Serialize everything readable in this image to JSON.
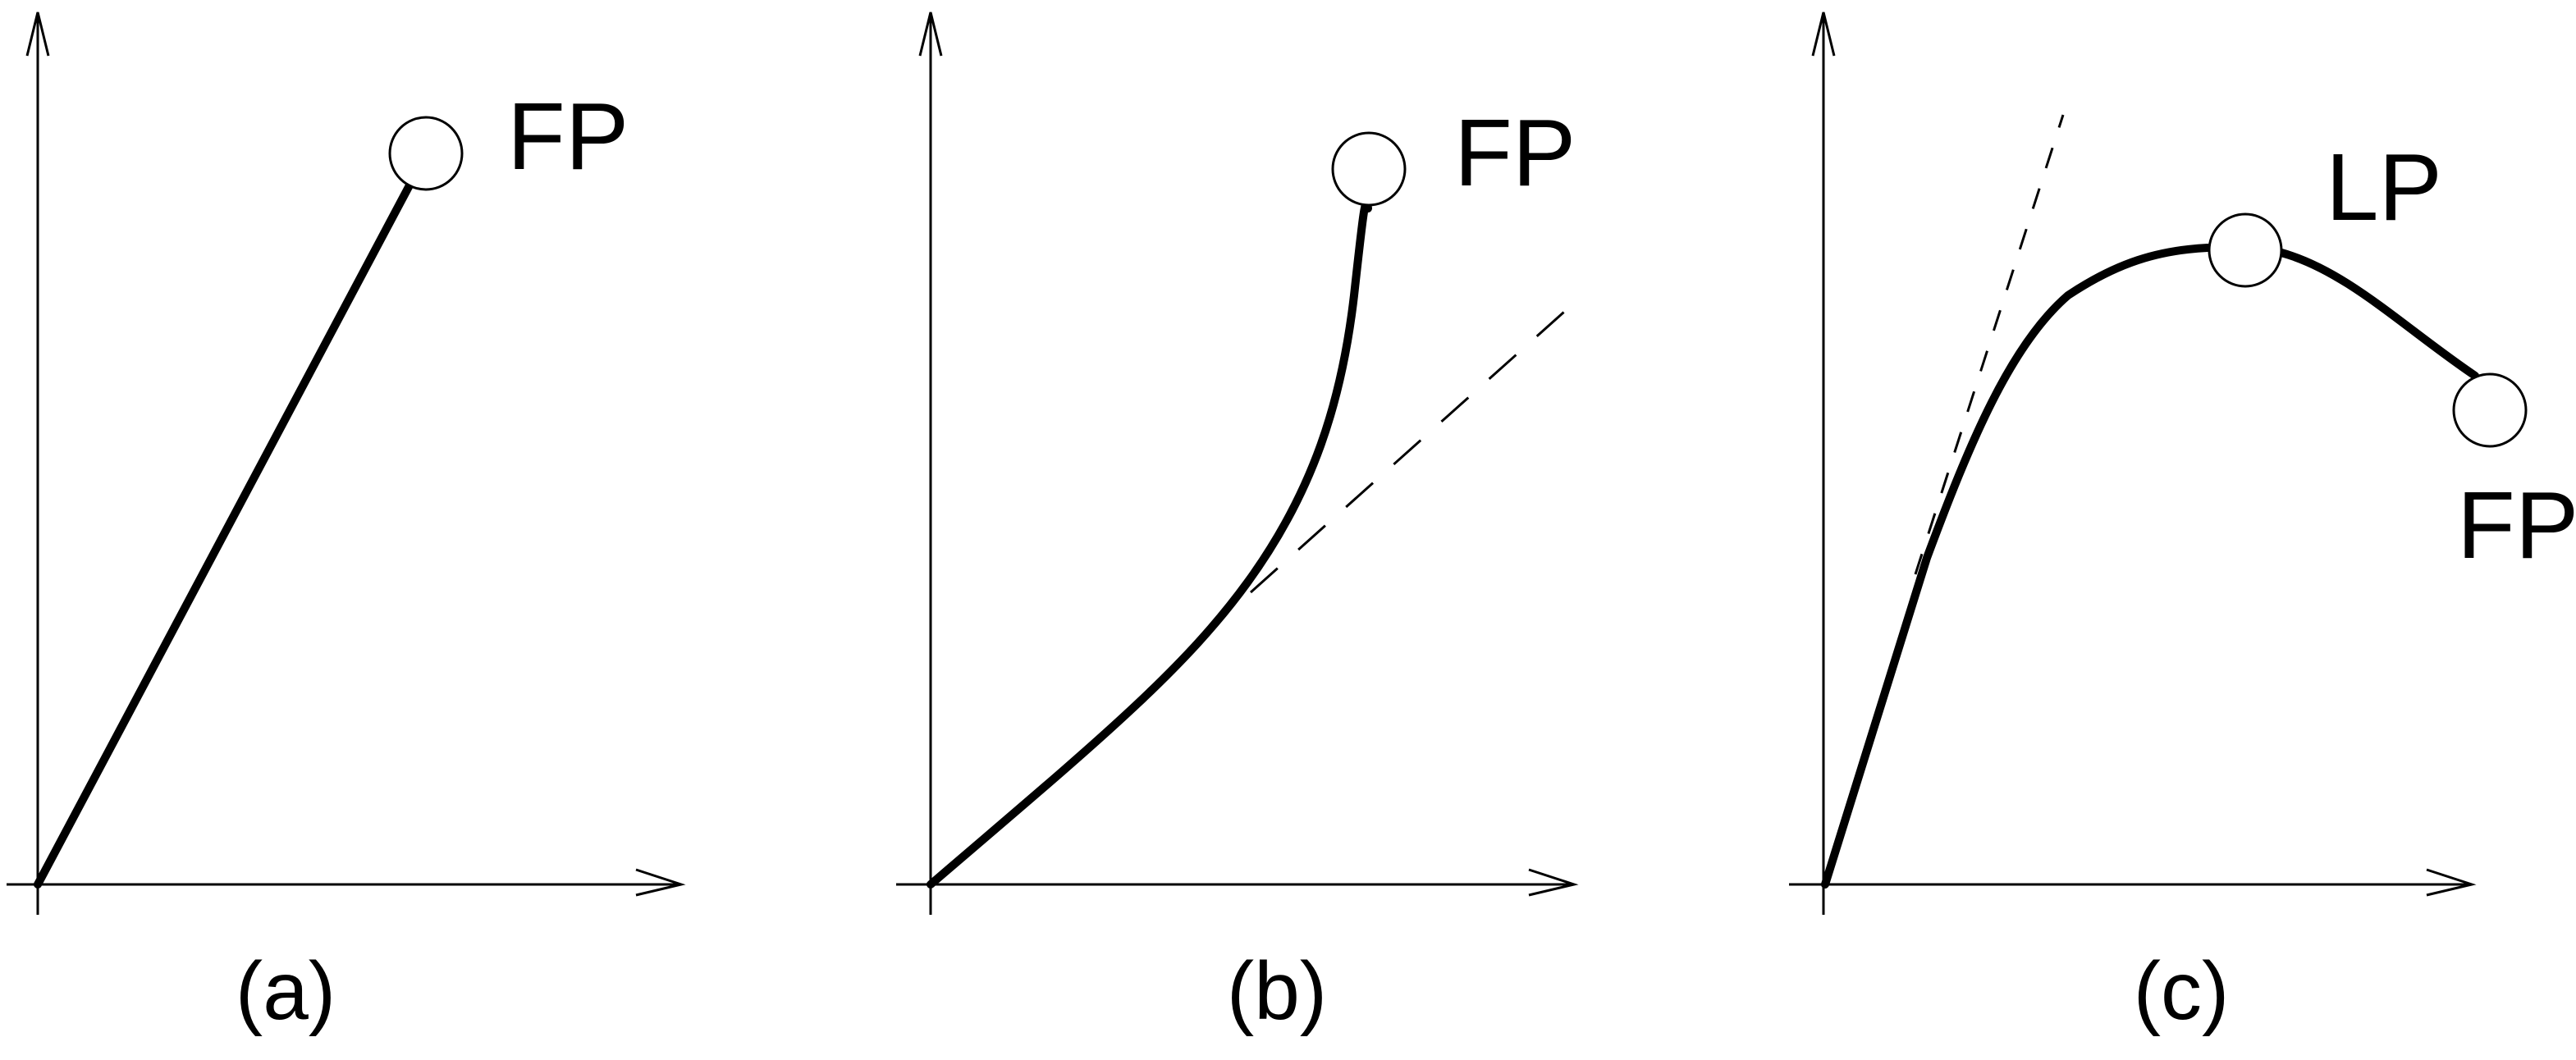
{
  "panels": [
    {
      "id": "a",
      "caption": "(a)",
      "curve": "linear",
      "points": [
        {
          "label": "FP"
        }
      ]
    },
    {
      "id": "b",
      "caption": "(b)",
      "curve": "stiffening with dashed tangent",
      "points": [
        {
          "label": "FP"
        }
      ]
    },
    {
      "id": "c",
      "caption": "(c)",
      "curve": "softening with dashed initial tangent",
      "points": [
        {
          "label": "LP"
        },
        {
          "label": "FP"
        }
      ]
    }
  ],
  "colors": {
    "ink": "#000000",
    "background": "#ffffff"
  }
}
